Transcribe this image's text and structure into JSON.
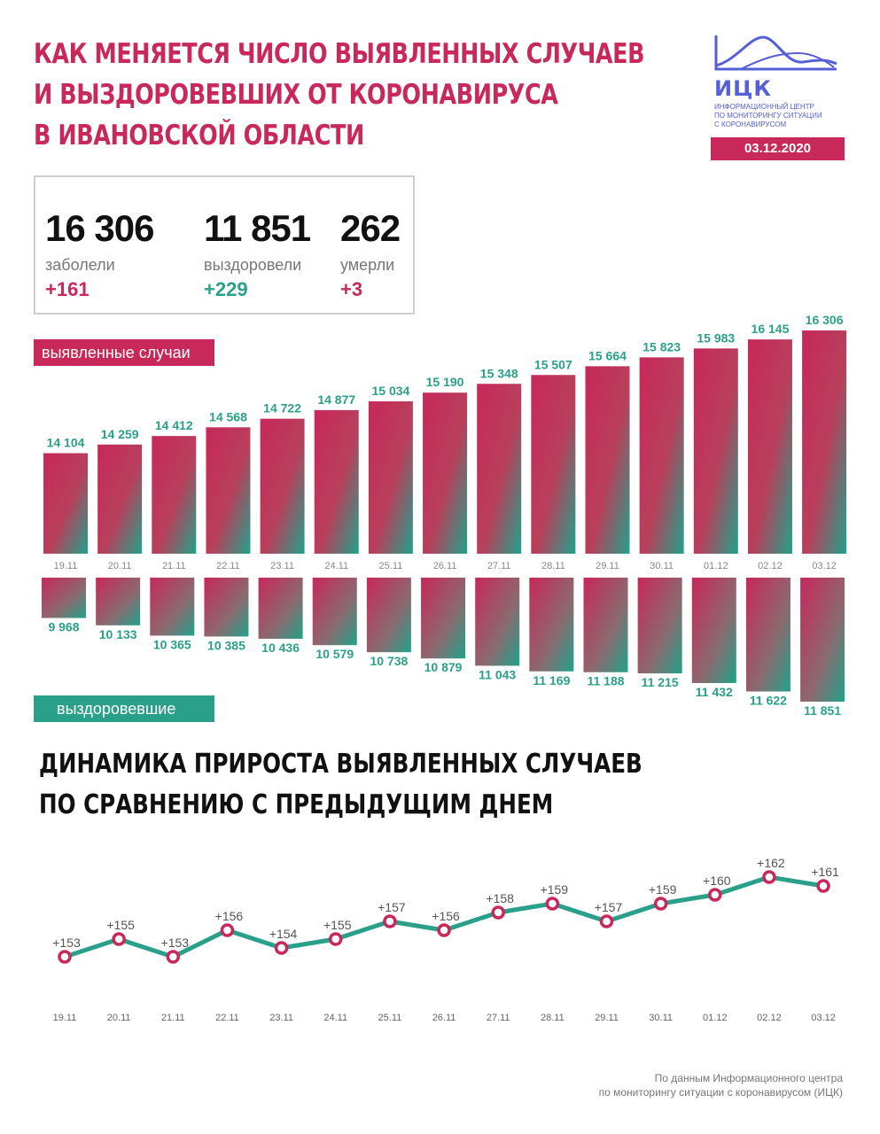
{
  "title_lines": [
    "КАК МЕНЯЕТСЯ ЧИСЛО ВЫЯВЛЕННЫХ СЛУЧАЕВ",
    "И ВЫЗДОРОВЕВШИХ ОТ КОРОНАВИРУСА",
    "В ИВАНОВСКОЙ ОБЛАСТИ"
  ],
  "logo": {
    "abbr": "ИЦК",
    "desc_lines": [
      "Информационный центр",
      "по мониторингу ситуации",
      "с коронавирусом"
    ]
  },
  "date": "03.12.2020",
  "stats": [
    {
      "value": "16 306",
      "label": "заболели",
      "delta": "+161"
    },
    {
      "value": "11 851",
      "label": "выздоровели",
      "delta": "+229"
    },
    {
      "value": "262",
      "label": "умерли",
      "delta": "+3"
    }
  ],
  "cases_label": "выявленные случаи",
  "recovered_label": "выздоровевшие",
  "section_title_lines": [
    "ДИНАМИКА ПРИРОСТА ВЫЯВЛЕННЫХ СЛУЧАЕВ",
    "ПО СРАВНЕНИЮ С ПРЕДЫДУЩИМ ДНЕМ"
  ],
  "footer_lines": [
    "По данным Информационного центра",
    "по мониторингу ситуации с коронавирусом (ИЦК)"
  ],
  "colors": {
    "red": "#c8285a",
    "green": "#2aa08a",
    "logo": "#5560d6"
  },
  "chart_data": [
    {
      "type": "bar",
      "categories": [
        "19.11",
        "20.11",
        "21.11",
        "22.11",
        "23.11",
        "24.11",
        "25.11",
        "26.11",
        "27.11",
        "28.11",
        "29.11",
        "30.11",
        "01.12",
        "02.12",
        "03.12"
      ],
      "series": [
        {
          "name": "выявленные случаи",
          "values": [
            14104,
            14259,
            14412,
            14568,
            14722,
            14877,
            15034,
            15190,
            15348,
            15507,
            15664,
            15823,
            15983,
            16145,
            16306
          ]
        }
      ],
      "value_labels": [
        "14 104",
        "14 259",
        "14 412",
        "14 568",
        "14 722",
        "14 877",
        "15 034",
        "15 190",
        "15 348",
        "15 507",
        "15 664",
        "15 823",
        "15 983",
        "16 145",
        "16 306"
      ],
      "ylim": [
        12300,
        16306
      ]
    },
    {
      "type": "bar",
      "categories": [
        "19.11",
        "20.11",
        "21.11",
        "22.11",
        "23.11",
        "24.11",
        "25.11",
        "26.11",
        "27.11",
        "28.11",
        "29.11",
        "30.11",
        "01.12",
        "02.12",
        "03.12"
      ],
      "series": [
        {
          "name": "выздоровевшие",
          "values": [
            9968,
            10133,
            10365,
            10385,
            10436,
            10579,
            10738,
            10879,
            11043,
            11169,
            11188,
            11215,
            11432,
            11622,
            11851
          ]
        }
      ],
      "value_labels": [
        "9 968",
        "10 133",
        "10 365",
        "10 385",
        "10 436",
        "10 579",
        "10 738",
        "10 879",
        "11 043",
        "11 169",
        "11 188",
        "11 215",
        "11 432",
        "11 622",
        "11 851"
      ],
      "ylim": [
        9060,
        11851
      ]
    },
    {
      "type": "line",
      "x": [
        "19.11",
        "20.11",
        "21.11",
        "22.11",
        "23.11",
        "24.11",
        "25.11",
        "26.11",
        "27.11",
        "28.11",
        "29.11",
        "30.11",
        "01.12",
        "02.12",
        "03.12"
      ],
      "series": [
        {
          "values": [
            153,
            155,
            153,
            156,
            154,
            155,
            157,
            156,
            158,
            159,
            157,
            159,
            160,
            162,
            161
          ]
        }
      ],
      "point_labels": [
        "+153",
        "+155",
        "+153",
        "+156",
        "+154",
        "+155",
        "+157",
        "+156",
        "+158",
        "+159",
        "+157",
        "+159",
        "+160",
        "+162",
        "+161"
      ],
      "ylim": [
        149,
        163
      ]
    }
  ]
}
